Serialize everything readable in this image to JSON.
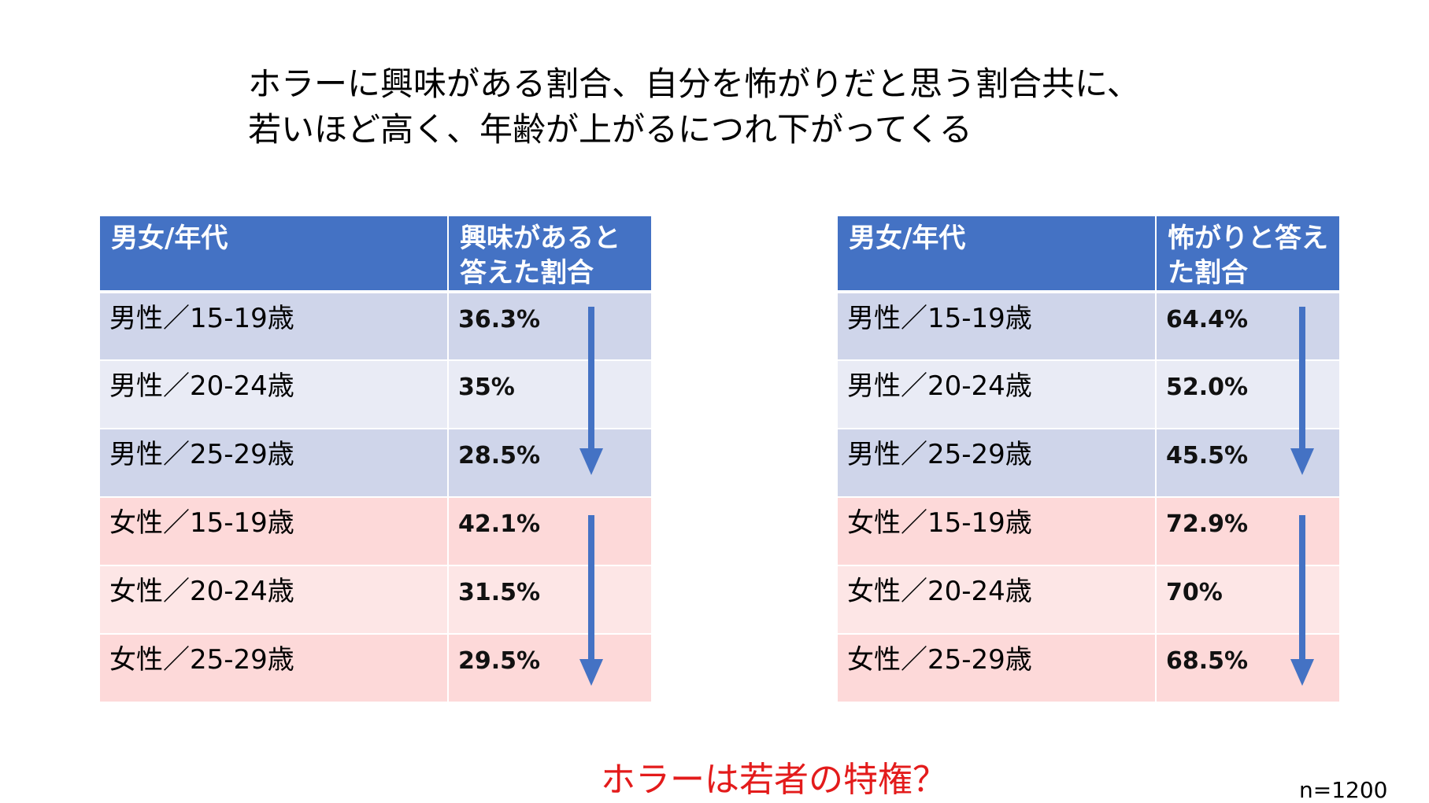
{
  "title": {
    "line1": "ホラーに興味がある割合、自分を怖がりだと思う割合共に、",
    "line2": "若いほど高く、年齢が上がるにつれ下がってくる"
  },
  "left_table": {
    "header_group": "男女/年代",
    "header_value": "興味があると答えた割合",
    "rows": [
      {
        "group": "男性／15-19歳",
        "value": "36.3%"
      },
      {
        "group": "男性／20-24歳",
        "value": "35%"
      },
      {
        "group": "男性／25-29歳",
        "value": "28.5%"
      },
      {
        "group": "女性／15-19歳",
        "value": "42.1%"
      },
      {
        "group": "女性／20-24歳",
        "value": "31.5%"
      },
      {
        "group": "女性／25-29歳",
        "value": "29.5%"
      }
    ]
  },
  "right_table": {
    "header_group": "男女/年代",
    "header_value": "怖がりと答えた割合",
    "rows": [
      {
        "group": "男性／15-19歳",
        "value": "64.4%"
      },
      {
        "group": "男性／20-24歳",
        "value": "52.0%"
      },
      {
        "group": "男性／25-29歳",
        "value": "45.5%"
      },
      {
        "group": "女性／15-19歳",
        "value": "72.9%"
      },
      {
        "group": "女性／20-24歳",
        "value": "70%"
      },
      {
        "group": "女性／25-29歳",
        "value": "68.5%"
      }
    ]
  },
  "tagline": "ホラーは若者の特権？",
  "sample_note": "n=1200",
  "colors": {
    "header_blue": "#4472c4",
    "male_row_dark": "#cfd5ea",
    "male_row_light": "#e9ebf5",
    "female_row": "#fdd9d9",
    "arrow_blue": "#4472c4",
    "tagline_red": "#e31b1b"
  }
}
